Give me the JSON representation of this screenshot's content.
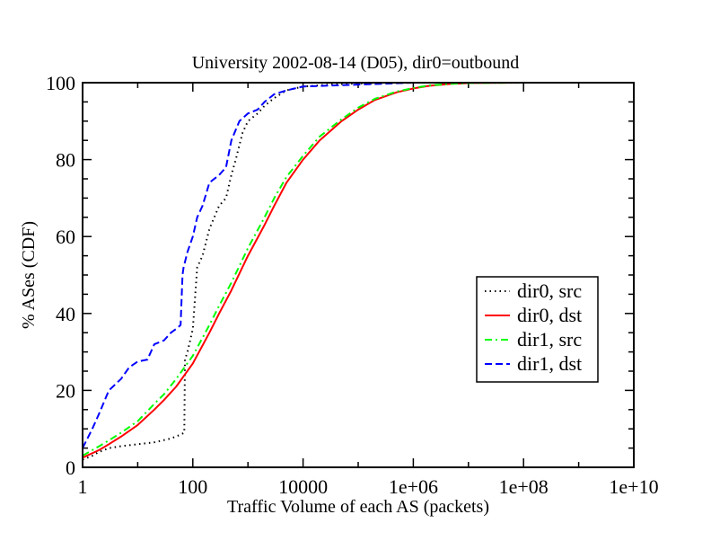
{
  "chart_data": {
    "type": "line",
    "title": "University 2002-08-14 (D05), dir0=outbound",
    "xlabel": "Traffic Volume of each AS (packets)",
    "ylabel": "% ASes (CDF)",
    "x_scale": "log10",
    "xlim": [
      1,
      10000000000.0
    ],
    "ylim": [
      0,
      100
    ],
    "x_ticks": [
      {
        "value": 1,
        "label": "1"
      },
      {
        "value": 100,
        "label": "100"
      },
      {
        "value": 10000,
        "label": "10000"
      },
      {
        "value": 1000000,
        "label": "1e+06"
      },
      {
        "value": 100000000,
        "label": "1e+08"
      },
      {
        "value": 10000000000,
        "label": "1e+10"
      }
    ],
    "y_ticks": [
      0,
      20,
      40,
      60,
      80,
      100
    ],
    "legend_position": "center-right",
    "series": [
      {
        "name": "dir0, src",
        "color": "#000000",
        "dash": "dotted",
        "x": [
          1,
          1.5,
          2,
          3,
          5,
          10,
          20,
          40,
          60,
          70,
          72,
          80,
          100,
          120,
          150,
          200,
          300,
          400,
          500,
          600,
          800,
          1000,
          1500,
          2000,
          3000,
          5000,
          10000,
          30000,
          100000,
          1000000,
          10000000,
          100000000
        ],
        "y": [
          2,
          3,
          4,
          5,
          5.5,
          6,
          6.5,
          7.5,
          8.5,
          9,
          28,
          30,
          36,
          52,
          55,
          62,
          68,
          70,
          76,
          80,
          87,
          90,
          92,
          94,
          96,
          98,
          99,
          99.5,
          99.8,
          100,
          100,
          100
        ]
      },
      {
        "name": "dir0, dst",
        "color": "#ff0000",
        "dash": "solid",
        "x": [
          1,
          2,
          3,
          5,
          10,
          20,
          30,
          50,
          100,
          200,
          300,
          500,
          1000,
          2000,
          3000,
          5000,
          10000,
          20000,
          50000,
          100000,
          200000,
          500000,
          1000000,
          2000000,
          5000000,
          10000000,
          100000000
        ],
        "y": [
          2.5,
          4.5,
          6,
          8,
          11,
          15,
          17.5,
          21,
          27,
          35,
          40,
          46,
          55,
          63,
          68,
          74,
          80,
          85,
          90,
          93,
          95.5,
          97.5,
          98.5,
          99.2,
          99.7,
          99.9,
          100
        ]
      },
      {
        "name": "dir1, src",
        "color": "#00ff00",
        "dash": "dashdot",
        "x": [
          1,
          2,
          3,
          5,
          10,
          20,
          30,
          50,
          100,
          200,
          300,
          500,
          1000,
          2000,
          3000,
          5000,
          10000,
          20000,
          50000,
          100000,
          200000,
          500000,
          1000000,
          2000000,
          5000000,
          10000000,
          100000000
        ],
        "y": [
          3,
          5.5,
          7,
          9,
          12,
          16.5,
          19,
          23,
          29,
          37,
          42,
          48,
          57,
          65,
          70,
          75.5,
          81,
          86,
          90.5,
          93.5,
          95.8,
          97.7,
          98.6,
          99.3,
          99.7,
          99.9,
          100
        ]
      },
      {
        "name": "dir1, dst",
        "color": "#0000ff",
        "dash": "dashed",
        "x": [
          1,
          1.5,
          2,
          3,
          5,
          7,
          10,
          15,
          20,
          30,
          40,
          50,
          60,
          65,
          68,
          80,
          100,
          120,
          150,
          200,
          300,
          400,
          500,
          700,
          1000,
          1500,
          2000,
          3000,
          5000,
          10000,
          100000,
          1000000,
          100000000
        ],
        "y": [
          5,
          10,
          14,
          20,
          23,
          26,
          27.5,
          28,
          32,
          33,
          35,
          36,
          37,
          50,
          52,
          56,
          60,
          65,
          68,
          74,
          76,
          78,
          85,
          90,
          92,
          93,
          95,
          97,
          98,
          99,
          99.5,
          100,
          100
        ]
      }
    ]
  }
}
